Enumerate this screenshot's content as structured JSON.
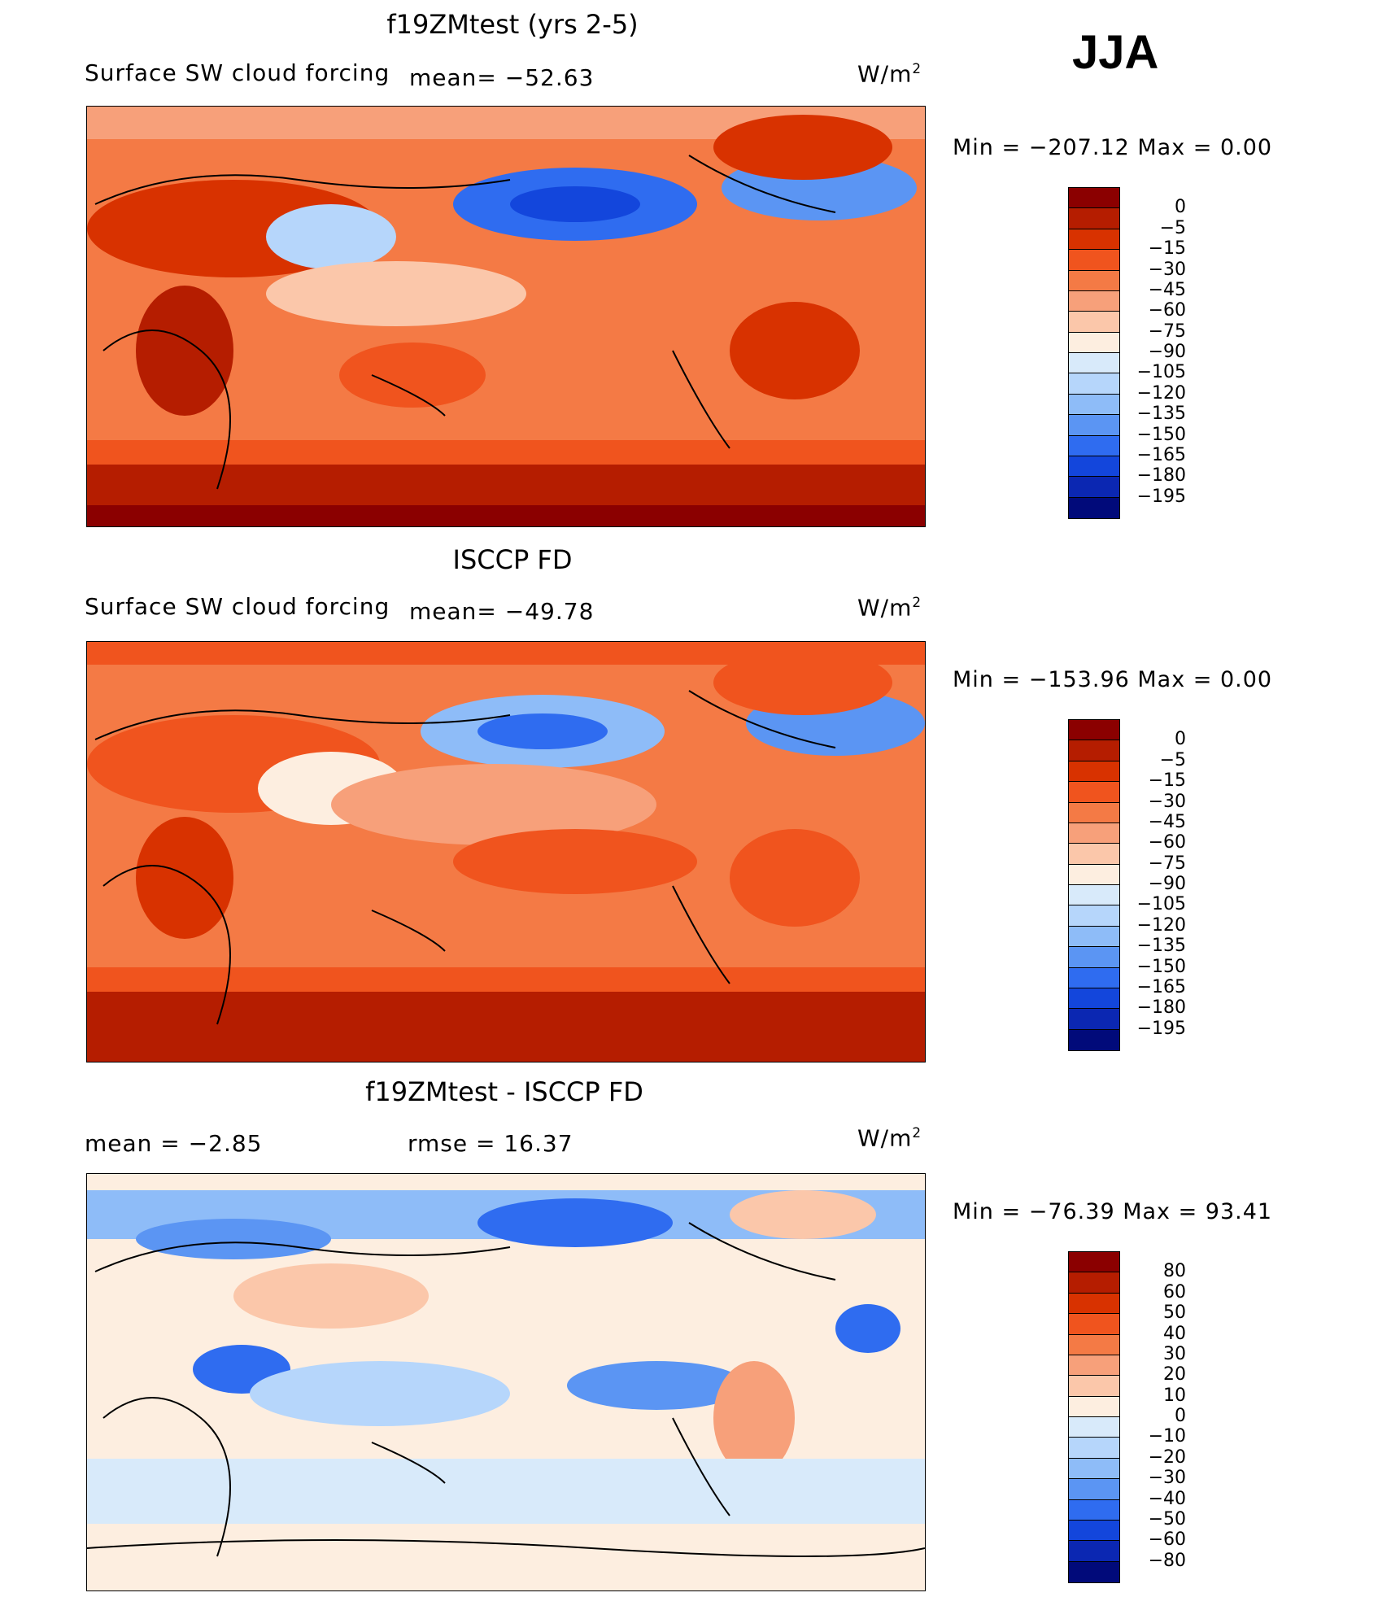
{
  "season": "JJA",
  "units_main": "W/m",
  "units_sup": "2",
  "panels": [
    {
      "title": "f19ZMtest (yrs 2-5)",
      "field": "Surface SW cloud forcing",
      "stat_left": "mean=  −52.63",
      "stat_right": "",
      "min_label": "Min  =  −207.12  Max  =      0.00",
      "levels": [
        "0",
        "−5",
        "−15",
        "−30",
        "−45",
        "−60",
        "−75",
        "−90",
        "−105",
        "−120",
        "−135",
        "−150",
        "−165",
        "−180",
        "−195"
      ]
    },
    {
      "title": "ISCCP FD",
      "field": "Surface SW cloud forcing",
      "stat_left": "mean=  −49.78",
      "stat_right": "",
      "min_label": "Min  =  −153.96  Max  =      0.00",
      "levels": [
        "0",
        "−5",
        "−15",
        "−30",
        "−45",
        "−60",
        "−75",
        "−90",
        "−105",
        "−120",
        "−135",
        "−150",
        "−165",
        "−180",
        "−195"
      ]
    },
    {
      "title": "f19ZMtest - ISCCP FD",
      "field": "mean  =     −2.85",
      "stat_left": "rmse  =     16.37",
      "stat_right": "",
      "min_label": "Min  =  −76.39  Max  =    93.41",
      "levels": [
        "80",
        "60",
        "50",
        "40",
        "30",
        "20",
        "10",
        "0",
        "−10",
        "−20",
        "−30",
        "−40",
        "−50",
        "−60",
        "−80"
      ]
    }
  ],
  "colors": [
    "#8b0000",
    "#b51d00",
    "#d83200",
    "#f0541e",
    "#f47a45",
    "#f7a07a",
    "#fbc7aa",
    "#fdeee0",
    "#d8eafa",
    "#b6d6fb",
    "#8ebcf8",
    "#5b95f3",
    "#2f6cf0",
    "#1346dc",
    "#0b27b2",
    "#010a7a"
  ]
}
